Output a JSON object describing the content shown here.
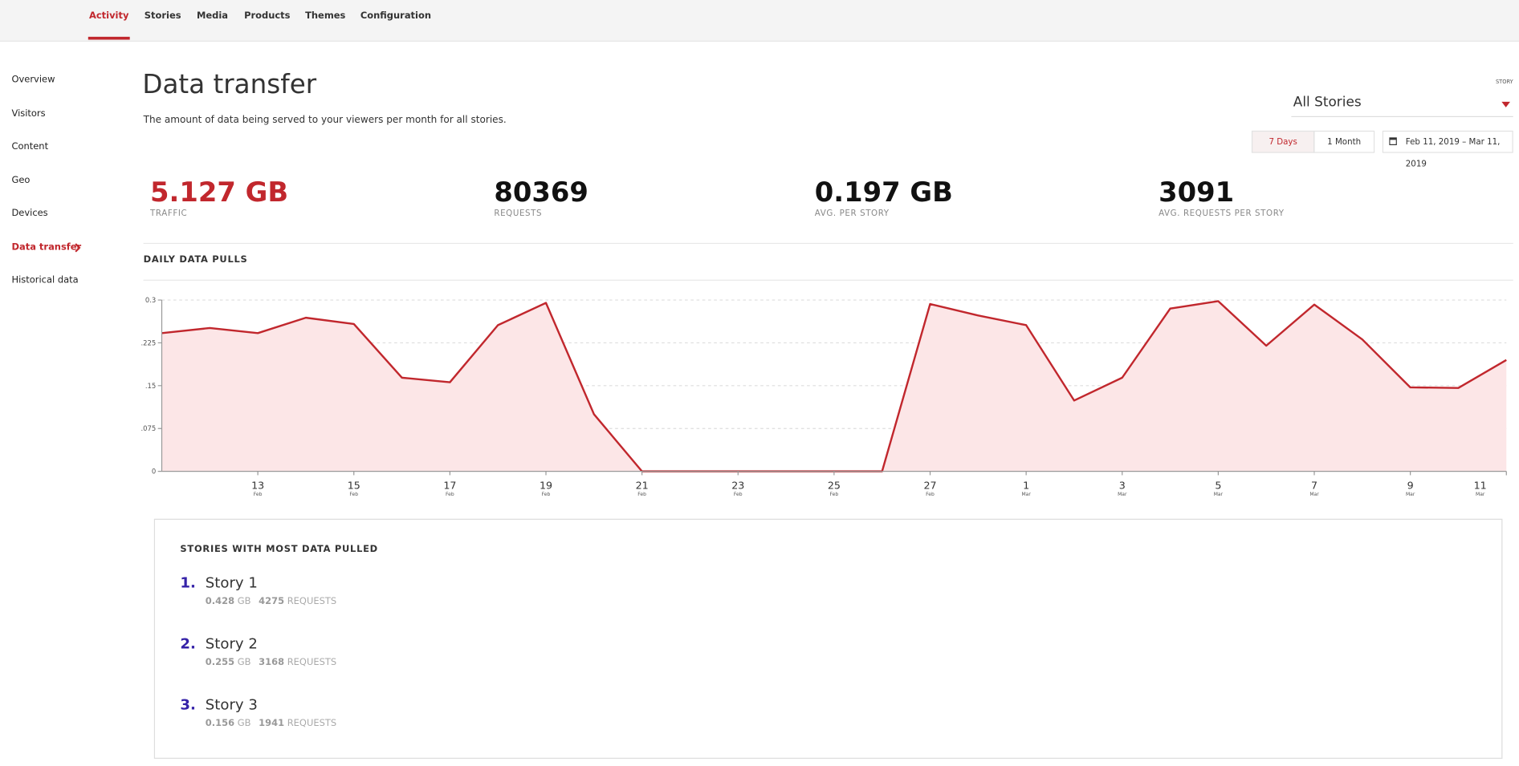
{
  "nav": [
    "Activity",
    "Stories",
    "Media",
    "Products",
    "Themes",
    "Configuration"
  ],
  "sidebar": [
    "Overview",
    "Visitors",
    "Content",
    "Geo",
    "Devices",
    "Data transfer",
    "Historical data"
  ],
  "header": {
    "title": "Data transfer",
    "subtitle": "The amount of data being served to your viewers per month for all stories.",
    "story_label": "STORY",
    "story_select": "All Stories",
    "range_buttons": [
      "7 Days",
      "1 Month"
    ],
    "date_range": "Feb 11, 2019 – Mar 11, 2019"
  },
  "stats": [
    {
      "value": "5.127 GB",
      "label": "TRAFFIC"
    },
    {
      "value": 80369,
      "label": "REQUESTS"
    },
    {
      "value": "0.197 GB",
      "label": "AVG. PER STORY"
    },
    {
      "value": 3091,
      "label": "AVG. REQUESTS PER STORY"
    }
  ],
  "chart_data": {
    "type": "area",
    "title": "DAILY DATA PULLS",
    "categories": [
      null,
      null,
      "13",
      null,
      "15",
      null,
      "17",
      null,
      "19",
      null,
      "21",
      null,
      "23",
      null,
      "25",
      null,
      "27",
      null,
      "1",
      null,
      "3",
      null,
      "5",
      null,
      "7",
      null,
      "9",
      null,
      "11"
    ],
    "category_months": [
      null,
      null,
      "Feb",
      null,
      "Feb",
      null,
      "Feb",
      null,
      "Feb",
      null,
      "Feb",
      null,
      "Feb",
      null,
      "Feb",
      null,
      "Feb",
      null,
      "Mar",
      null,
      "Mar",
      null,
      "Mar",
      null,
      "Mar",
      null,
      "Mar",
      null,
      "Mar"
    ],
    "values": [
      0.242,
      0.251,
      0.242,
      0.269,
      0.258,
      0.164,
      0.156,
      0.256,
      0.295,
      0.1,
      0,
      0,
      0,
      0,
      0,
      0,
      0.293,
      0.273,
      0.256,
      0.124,
      0.164,
      0.285,
      0.298,
      0.22,
      0.292,
      0.231,
      0.147,
      0.146,
      0.195
    ],
    "color": "#c1272d",
    "fill": "#fce6e7",
    "ylim": [
      0,
      0.3
    ],
    "yticks": [
      0,
      {
        "value": 0.075,
        "label": ".075"
      },
      {
        "value": 0.15,
        "label": ".15"
      },
      {
        "value": 0.225,
        "label": ".225"
      },
      0.3
    ],
    "grid": true
  },
  "top_stories": {
    "title": "STORIES WITH MOST DATA PULLED",
    "items": [
      {
        "rank": "1.",
        "name": "Story 1",
        "gb": 0.428,
        "gb_unit": "GB",
        "requests": 4275,
        "requests_unit": "REQUESTS"
      },
      {
        "rank": "2.",
        "name": "Story 2",
        "gb": 0.255,
        "gb_unit": "GB",
        "requests": 3168,
        "requests_unit": "REQUESTS"
      },
      {
        "rank": "3.",
        "name": "Story 3",
        "gb": 0.156,
        "gb_unit": "GB",
        "requests": 1941,
        "requests_unit": "REQUESTS"
      }
    ]
  }
}
